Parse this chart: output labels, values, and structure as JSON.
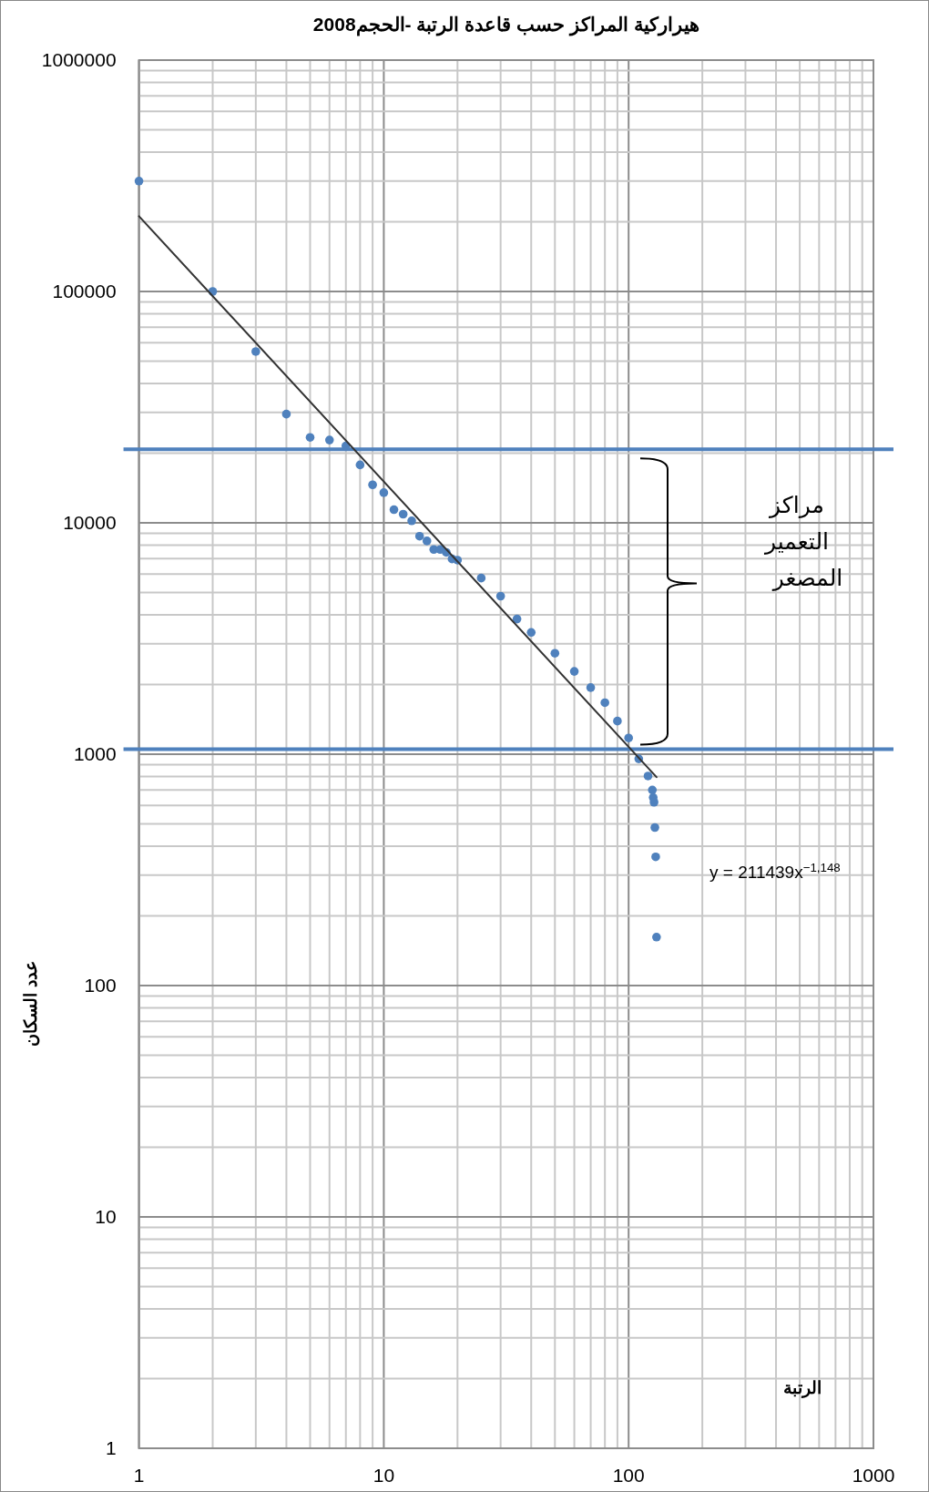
{
  "chart_data": {
    "type": "scatter",
    "title": "هيراركية المراكز حسب قاعدة الرتبة -الحجم2008",
    "xlabel": "الرتبة",
    "ylabel": "عدد السكان",
    "log": "xy",
    "xlim": [
      1,
      1000
    ],
    "ylim": [
      1,
      1000000
    ],
    "xticks": [
      1,
      10,
      100,
      1000
    ],
    "yticks": [
      1,
      10,
      100,
      1000,
      10000,
      100000,
      1000000
    ],
    "grid": true,
    "series": [
      {
        "marker": "circle",
        "color": "#4f81bd",
        "x": [
          1,
          2,
          3,
          4,
          5,
          6,
          7,
          8,
          9,
          10,
          11,
          12,
          13,
          14,
          15,
          16,
          17,
          18,
          19,
          20,
          25,
          30,
          35,
          40,
          50,
          60,
          70,
          80,
          90,
          100,
          110,
          120,
          125,
          126,
          127,
          128,
          129,
          130
        ],
        "values": [
          300000,
          100000,
          55000,
          29500,
          23400,
          22800,
          21500,
          17800,
          14600,
          13500,
          11400,
          10900,
          10200,
          8750,
          8350,
          7670,
          7670,
          7450,
          6980,
          6900,
          5770,
          4820,
          3840,
          3360,
          2730,
          2280,
          1940,
          1670,
          1390,
          1175,
          955,
          805,
          700,
          650,
          620,
          482,
          360,
          162
        ]
      },
      {
        "type": "line",
        "marker": "none",
        "color": "#333333",
        "x": [
          1,
          130
        ],
        "values": [
          211439,
          796
        ]
      }
    ],
    "ref_lines": [
      {
        "axis": "y",
        "value": 20800,
        "color": "#4f81bd"
      },
      {
        "axis": "y",
        "value": 1050,
        "color": "#4f81bd"
      }
    ],
    "annotations": [
      "مراكز التعمير المصغر",
      "y = 211439x$^{−1,148}$"
    ]
  }
}
